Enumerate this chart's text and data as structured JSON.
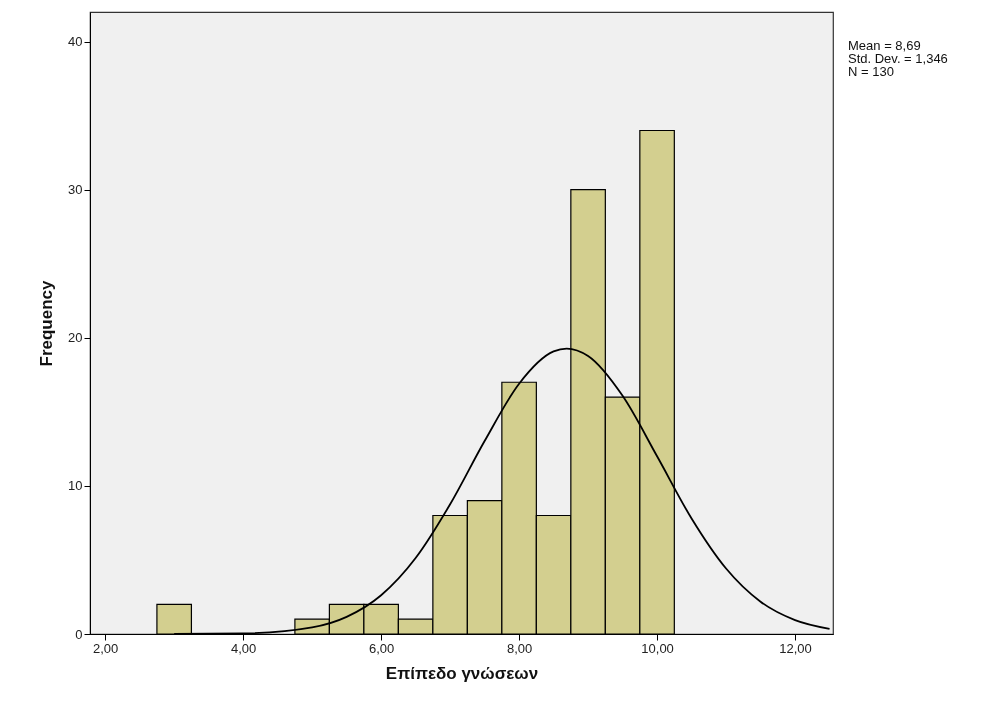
{
  "chart_data": {
    "type": "histogram",
    "xlabel": "Επίπεδο γνώσεων",
    "ylabel": "Frequency",
    "bins": [
      2.75,
      3.25,
      3.75,
      4.25,
      4.75,
      5.25,
      5.75,
      6.25,
      6.75,
      7.25,
      7.75,
      8.25,
      8.75,
      9.25,
      9.75,
      10.25
    ],
    "values": [
      2,
      0,
      0,
      0,
      1,
      2,
      2,
      1,
      8,
      9,
      17,
      8,
      30,
      16,
      34
    ],
    "color": "#d3cf8f",
    "series": [
      {
        "type": "line",
        "color": "#000000",
        "x": [
          3,
          4,
          5,
          5.5,
          6,
          6.5,
          7,
          7.5,
          8,
          8.5,
          8.69,
          9,
          9.5,
          10,
          10.5,
          11,
          11.5,
          12,
          12.5
        ],
        "values": [
          0,
          0.04,
          0.45,
          1.16,
          2.62,
          5.13,
          8.76,
          13.03,
          16.9,
          19.08,
          19.27,
          18.77,
          16.08,
          12,
          7.8,
          4.42,
          2.18,
          0.94,
          0.35
        ]
      }
    ],
    "xlim": [
      1.78,
      12.55
    ],
    "ylim": [
      0,
      42
    ],
    "xticks": [
      {
        "value": 2,
        "label": "2,00"
      },
      {
        "value": 4,
        "label": "4,00"
      },
      {
        "value": 6,
        "label": "6,00"
      },
      {
        "value": 8,
        "label": "8,00"
      },
      {
        "value": 10,
        "label": "10,00"
      },
      {
        "value": 12,
        "label": "12,00"
      }
    ],
    "yticks": [
      0,
      10,
      20,
      30,
      40
    ],
    "annotations": [
      "Mean = 8,69",
      "Std. Dev. = 1,346",
      "N = 130"
    ],
    "grid": false
  }
}
